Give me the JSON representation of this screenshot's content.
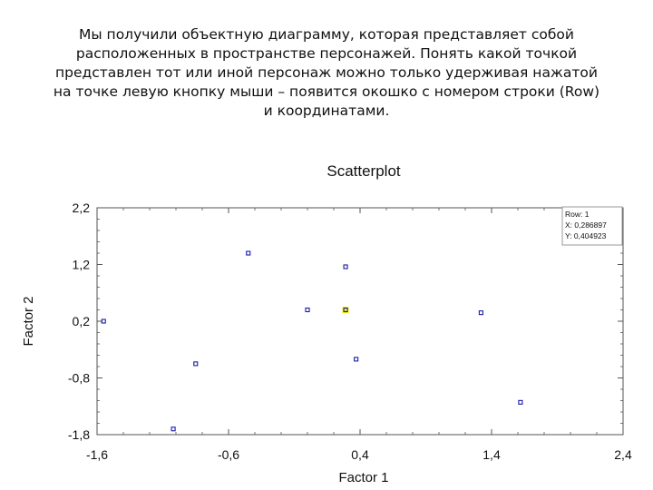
{
  "description_lines": [
    "Мы получили объектную диаграмму, которая представляет собой",
    "расположенных в пространстве персонажей. Понять какой точкой",
    "представлен тот или иной персонаж можно только удерживая нажатой",
    "на точке левую кнопку мыши – появится окошко с номером строки (Row)",
    "и координатами."
  ],
  "tooltip": {
    "row": "Row: 1",
    "x": "X: 0,286897",
    "y": "Y: 0,404923"
  },
  "colors": {
    "point": "#1a1aa6",
    "highlight": "#f5f500"
  },
  "chart_data": {
    "type": "scatter",
    "title": "Scatterplot",
    "xlabel": "Factor 1",
    "ylabel": "Factor 2",
    "xlim": [
      -1.6,
      2.4
    ],
    "ylim": [
      -1.8,
      2.2
    ],
    "xticks": [
      "-1,6",
      "-0,6",
      "0,4",
      "1,4",
      "2,4"
    ],
    "yticks": [
      "2,2",
      "1,2",
      "0,2",
      "-0,8",
      "-1,8"
    ],
    "points": [
      {
        "x": -1.55,
        "y": 0.2
      },
      {
        "x": -1.02,
        "y": -1.7
      },
      {
        "x": -0.85,
        "y": -0.55
      },
      {
        "x": -0.45,
        "y": 1.4
      },
      {
        "x": 0.0,
        "y": 0.4
      },
      {
        "x": 0.29,
        "y": 0.4,
        "selected": true
      },
      {
        "x": 0.29,
        "y": 1.16
      },
      {
        "x": 0.37,
        "y": -0.47
      },
      {
        "x": 1.32,
        "y": 0.35
      },
      {
        "x": 1.62,
        "y": -1.23
      }
    ]
  }
}
